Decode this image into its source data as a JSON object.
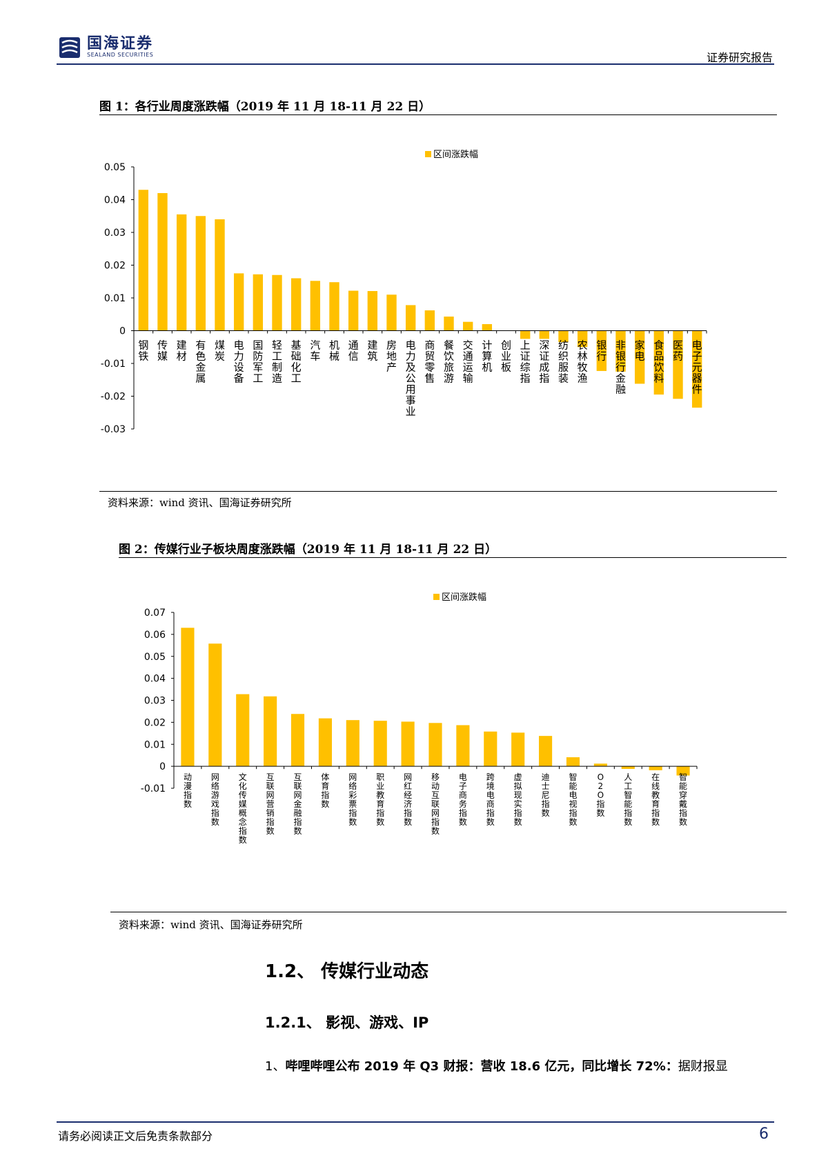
{
  "header": {
    "brand_cn": "国海证券",
    "brand_en": "SEALAND SECURITIES",
    "report_type": "证券研究报告"
  },
  "figure1": {
    "title": "图 1：各行业周度涨跌幅（2019 年 11 月 18-11 月 22 日）",
    "source": "资料来源：wind 资讯、国海证券研究所"
  },
  "figure2": {
    "title": "图 2：传媒行业子板块周度涨跌幅（2019 年 11 月 18-11 月 22 日）",
    "source": "资料来源：wind 资讯、国海证券研究所"
  },
  "section": {
    "h2": "1.2、 传媒行业动态",
    "h3": "1.2.1、 影视、游戏、IP",
    "para_lead": "1、",
    "para_bold": "哔哩哔哩公布 2019 年 Q3 财报：营收 18.6 亿元，同比增长 72%：",
    "para_rest": "据财报显"
  },
  "footer": {
    "disclaimer": "请务必阅读正文后免责条款部分",
    "page": "6"
  },
  "colors": {
    "bar": "#FFC000",
    "brand": "#1a2d6e"
  },
  "chart_data": [
    {
      "type": "bar",
      "legend": "区间涨跌幅",
      "legend_position": "top-center",
      "ylim": [
        -0.03,
        0.05
      ],
      "yticks": [
        "0.05",
        "0.04",
        "0.03",
        "0.02",
        "0.01",
        "0",
        "-0.01",
        "-0.02",
        "-0.03"
      ],
      "ytick_values": [
        0.05,
        0.04,
        0.03,
        0.02,
        0.01,
        0,
        -0.01,
        -0.02,
        -0.03
      ],
      "categories": [
        "钢铁",
        "传媒",
        "建材",
        "有色金属",
        "煤炭",
        "电力设备",
        "国防军工",
        "轻工制造",
        "基础化工",
        "汽车",
        "机械",
        "通信",
        "建筑",
        "房地产",
        "电力及公用事业",
        "商贸零售",
        "餐饮旅游",
        "交通运输",
        "计算机",
        "创业板",
        "上证综指",
        "深证成指",
        "纺织服装",
        "农林牧渔",
        "银行",
        "非银行金融",
        "家电",
        "食品饮料",
        "医药",
        "电子元器件"
      ],
      "values": [
        0.043,
        0.042,
        0.0355,
        0.035,
        0.034,
        0.0175,
        0.0172,
        0.017,
        0.016,
        0.0152,
        0.0148,
        0.0122,
        0.0121,
        0.011,
        0.0078,
        0.0062,
        0.0043,
        0.0027,
        0.002,
        0,
        -0.0025,
        -0.0025,
        -0.0035,
        -0.005,
        -0.0123,
        -0.0125,
        -0.0162,
        -0.0195,
        -0.0208,
        -0.0235
      ]
    },
    {
      "type": "bar",
      "legend": "区间涨跌幅",
      "legend_position": "top-center",
      "ylim": [
        -0.01,
        0.07
      ],
      "yticks": [
        "0.07",
        "0.06",
        "0.05",
        "0.04",
        "0.03",
        "0.02",
        "0.01",
        "0",
        "-0.01"
      ],
      "ytick_values": [
        0.07,
        0.06,
        0.05,
        0.04,
        0.03,
        0.02,
        0.01,
        0,
        -0.01
      ],
      "categories": [
        "动漫指数",
        "网络游戏指数",
        "文化传媒概念指数",
        "互联网营销指数",
        "互联网金融指数",
        "体育指数",
        "网络彩票指数",
        "职业教育指数",
        "网红经济指数",
        "移动互联网指数",
        "电子商务指数",
        "跨境电商指数",
        "虚拟现实指数",
        "迪士尼指数",
        "智能电视指数",
        "O2O指数",
        "人工智能指数",
        "在线教育指数",
        "智能穿戴指数"
      ],
      "values": [
        0.063,
        0.0558,
        0.0328,
        0.0318,
        0.0238,
        0.0218,
        0.021,
        0.0207,
        0.0203,
        0.0197,
        0.0187,
        0.0158,
        0.0153,
        0.0138,
        0.0041,
        0.0012,
        -0.0012,
        -0.0018,
        -0.0042
      ]
    }
  ]
}
